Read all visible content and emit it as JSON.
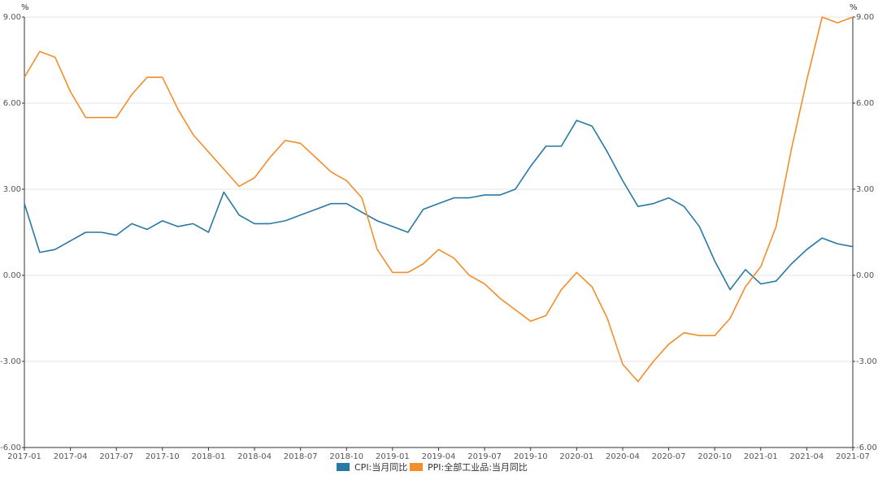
{
  "chart_data": {
    "type": "line",
    "title": "",
    "xlabel": "",
    "ylabel_left": "%",
    "ylabel_right": "%",
    "ylim": [
      -6.0,
      9.0
    ],
    "yticks": [
      -6.0,
      -3.0,
      0.0,
      3.0,
      6.0,
      9.0
    ],
    "ytick_labels": [
      "-6.00",
      "-3.00",
      "0.00",
      "3.00",
      "6.00",
      "9.00"
    ],
    "grid": true,
    "legend_position": "bottom-center",
    "x": [
      "2017-01",
      "2017-02",
      "2017-03",
      "2017-04",
      "2017-05",
      "2017-06",
      "2017-07",
      "2017-08",
      "2017-09",
      "2017-10",
      "2017-11",
      "2017-12",
      "2018-01",
      "2018-02",
      "2018-03",
      "2018-04",
      "2018-05",
      "2018-06",
      "2018-07",
      "2018-08",
      "2018-09",
      "2018-10",
      "2018-11",
      "2018-12",
      "2019-01",
      "2019-02",
      "2019-03",
      "2019-04",
      "2019-05",
      "2019-06",
      "2019-07",
      "2019-08",
      "2019-09",
      "2019-10",
      "2019-11",
      "2019-12",
      "2020-01",
      "2020-02",
      "2020-03",
      "2020-04",
      "2020-05",
      "2020-06",
      "2020-07",
      "2020-08",
      "2020-09",
      "2020-10",
      "2020-11",
      "2020-12",
      "2021-01",
      "2021-02",
      "2021-03",
      "2021-04",
      "2021-05",
      "2021-06",
      "2021-07"
    ],
    "xtick_labels": [
      "2017-01",
      "2017-04",
      "2017-07",
      "2017-10",
      "2018-01",
      "2018-04",
      "2018-07",
      "2018-10",
      "2019-01",
      "2019-04",
      "2019-07",
      "2019-10",
      "2020-01",
      "2020-04",
      "2020-07",
      "2020-10",
      "2021-01",
      "2021-04",
      "2021-07"
    ],
    "series": [
      {
        "name": "CPI:当月同比",
        "color": "#2878a6",
        "values": [
          2.5,
          0.8,
          0.9,
          1.2,
          1.5,
          1.5,
          1.4,
          1.8,
          1.6,
          1.9,
          1.7,
          1.8,
          1.5,
          2.9,
          2.1,
          1.8,
          1.8,
          1.9,
          2.1,
          2.3,
          2.5,
          2.5,
          2.2,
          1.9,
          1.7,
          1.5,
          2.3,
          2.5,
          2.7,
          2.7,
          2.8,
          2.8,
          3.0,
          3.8,
          4.5,
          4.5,
          5.4,
          5.2,
          4.3,
          3.3,
          2.4,
          2.5,
          2.7,
          2.4,
          1.7,
          0.5,
          -0.5,
          0.2,
          -0.3,
          -0.2,
          0.4,
          0.9,
          1.3,
          1.1,
          1.0
        ]
      },
      {
        "name": "PPI:全部工业品:当月同比",
        "color": "#f28e2b",
        "values": [
          6.9,
          7.8,
          7.6,
          6.4,
          5.5,
          5.5,
          5.5,
          6.3,
          6.9,
          6.9,
          5.8,
          4.9,
          4.3,
          3.7,
          3.1,
          3.4,
          4.1,
          4.7,
          4.6,
          4.1,
          3.6,
          3.3,
          2.7,
          0.9,
          0.1,
          0.1,
          0.4,
          0.9,
          0.6,
          0.0,
          -0.3,
          -0.8,
          -1.2,
          -1.6,
          -1.4,
          -0.5,
          0.1,
          -0.4,
          -1.5,
          -3.1,
          -3.7,
          -3.0,
          -2.4,
          -2.0,
          -2.1,
          -2.1,
          -1.5,
          -0.4,
          0.3,
          1.7,
          4.4,
          6.8,
          9.0,
          8.8,
          9.0
        ]
      }
    ]
  }
}
